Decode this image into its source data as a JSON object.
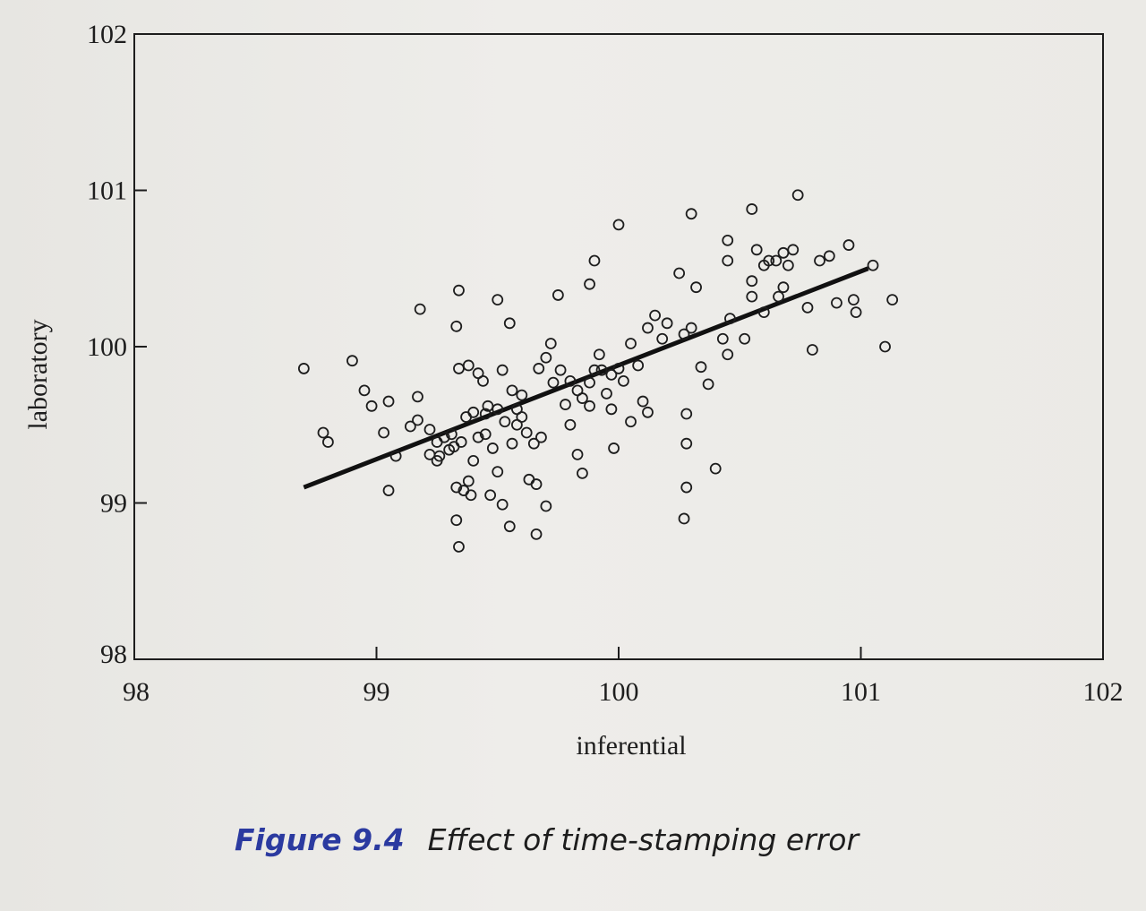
{
  "caption": {
    "number": "Figure 9.4",
    "text": "Effect of time-stamping error"
  },
  "colors": {
    "figure_number": "#2b3aa0",
    "ink": "#1d1d1d"
  },
  "chart_data": {
    "type": "scatter",
    "title": "",
    "xlabel": "inferential",
    "ylabel": "laboratory",
    "xlim": [
      98,
      102
    ],
    "ylim": [
      98,
      102
    ],
    "x_ticks": [
      "98",
      "99",
      "100",
      "101",
      "102"
    ],
    "y_ticks": [
      "98",
      "99",
      "100",
      "101",
      "102"
    ],
    "grid": false,
    "fit_line": {
      "x": [
        98.7,
        101.03
      ],
      "y": [
        99.1,
        100.5
      ]
    },
    "points": [
      [
        98.7,
        99.86
      ],
      [
        98.78,
        99.45
      ],
      [
        98.8,
        99.39
      ],
      [
        98.9,
        99.91
      ],
      [
        98.95,
        99.72
      ],
      [
        98.98,
        99.62
      ],
      [
        99.03,
        99.45
      ],
      [
        99.05,
        99.65
      ],
      [
        99.08,
        99.3
      ],
      [
        99.05,
        99.08
      ],
      [
        99.17,
        99.68
      ],
      [
        99.17,
        99.53
      ],
      [
        99.14,
        99.49
      ],
      [
        99.18,
        100.24
      ],
      [
        99.22,
        99.47
      ],
      [
        99.22,
        99.31
      ],
      [
        99.25,
        99.39
      ],
      [
        99.25,
        99.27
      ],
      [
        99.3,
        99.34
      ],
      [
        99.31,
        99.44
      ],
      [
        99.35,
        99.39
      ],
      [
        99.38,
        99.14
      ],
      [
        99.37,
        99.55
      ],
      [
        99.4,
        99.27
      ],
      [
        99.33,
        99.1
      ],
      [
        99.36,
        99.08
      ],
      [
        99.39,
        99.05
      ],
      [
        99.33,
        98.89
      ],
      [
        99.34,
        98.72
      ],
      [
        99.34,
        100.36
      ],
      [
        99.33,
        100.13
      ],
      [
        99.34,
        99.86
      ],
      [
        99.38,
        99.88
      ],
      [
        99.42,
        99.83
      ],
      [
        99.44,
        99.78
      ],
      [
        99.46,
        99.62
      ],
      [
        99.45,
        99.44
      ],
      [
        99.48,
        99.35
      ],
      [
        99.5,
        99.2
      ],
      [
        99.47,
        99.05
      ],
      [
        99.52,
        98.99
      ],
      [
        99.55,
        98.85
      ],
      [
        99.5,
        100.3
      ],
      [
        99.55,
        100.15
      ],
      [
        99.52,
        99.85
      ],
      [
        99.56,
        99.72
      ],
      [
        99.58,
        99.6
      ],
      [
        99.6,
        99.55
      ],
      [
        99.62,
        99.45
      ],
      [
        99.65,
        99.38
      ],
      [
        99.63,
        99.15
      ],
      [
        99.66,
        99.12
      ],
      [
        99.66,
        98.8
      ],
      [
        99.7,
        98.98
      ],
      [
        99.67,
        99.86
      ],
      [
        99.7,
        99.93
      ],
      [
        99.72,
        100.02
      ],
      [
        99.75,
        100.33
      ],
      [
        99.78,
        99.63
      ],
      [
        99.8,
        99.5
      ],
      [
        99.83,
        99.31
      ],
      [
        99.85,
        99.19
      ],
      [
        99.88,
        99.62
      ],
      [
        99.9,
        99.85
      ],
      [
        99.92,
        99.95
      ],
      [
        99.88,
        100.4
      ],
      [
        99.9,
        100.55
      ],
      [
        99.95,
        99.7
      ],
      [
        99.97,
        99.6
      ],
      [
        99.98,
        99.35
      ],
      [
        100.0,
        99.86
      ],
      [
        100.02,
        99.78
      ],
      [
        100.0,
        100.78
      ],
      [
        100.05,
        99.52
      ],
      [
        100.05,
        100.02
      ],
      [
        100.08,
        99.88
      ],
      [
        100.1,
        99.65
      ],
      [
        100.12,
        99.58
      ],
      [
        100.12,
        100.12
      ],
      [
        100.15,
        100.2
      ],
      [
        100.18,
        100.05
      ],
      [
        100.2,
        100.15
      ],
      [
        100.25,
        100.47
      ],
      [
        100.27,
        100.08
      ],
      [
        100.3,
        100.12
      ],
      [
        100.28,
        99.57
      ],
      [
        100.28,
        99.38
      ],
      [
        100.28,
        99.1
      ],
      [
        100.27,
        98.9
      ],
      [
        100.3,
        100.85
      ],
      [
        100.32,
        100.38
      ],
      [
        100.34,
        99.87
      ],
      [
        100.37,
        99.76
      ],
      [
        100.4,
        99.22
      ],
      [
        100.43,
        100.05
      ],
      [
        100.46,
        100.18
      ],
      [
        100.45,
        99.95
      ],
      [
        100.45,
        100.55
      ],
      [
        100.45,
        100.68
      ],
      [
        100.52,
        100.05
      ],
      [
        100.55,
        100.32
      ],
      [
        100.55,
        100.88
      ],
      [
        100.57,
        100.62
      ],
      [
        100.6,
        100.52
      ],
      [
        100.62,
        100.55
      ],
      [
        100.65,
        100.55
      ],
      [
        100.66,
        100.32
      ],
      [
        100.68,
        100.38
      ],
      [
        100.68,
        100.6
      ],
      [
        100.7,
        100.52
      ],
      [
        100.72,
        100.62
      ],
      [
        100.74,
        100.97
      ],
      [
        100.78,
        100.25
      ],
      [
        100.8,
        99.98
      ],
      [
        100.83,
        100.55
      ],
      [
        100.87,
        100.58
      ],
      [
        100.9,
        100.28
      ],
      [
        100.95,
        100.65
      ],
      [
        100.97,
        100.3
      ],
      [
        100.98,
        100.22
      ],
      [
        101.05,
        100.52
      ],
      [
        101.1,
        100.0
      ],
      [
        101.13,
        100.3
      ],
      [
        100.6,
        100.22
      ],
      [
        100.55,
        100.42
      ],
      [
        99.28,
        99.42
      ],
      [
        99.42,
        99.42
      ],
      [
        99.58,
        99.5
      ],
      [
        99.6,
        99.69
      ],
      [
        99.68,
        99.42
      ],
      [
        99.73,
        99.77
      ],
      [
        99.76,
        99.85
      ],
      [
        99.8,
        99.78
      ],
      [
        99.83,
        99.72
      ],
      [
        99.85,
        99.67
      ],
      [
        99.88,
        99.77
      ],
      [
        99.93,
        99.85
      ],
      [
        99.97,
        99.82
      ],
      [
        99.5,
        99.6
      ],
      [
        99.45,
        99.57
      ],
      [
        99.4,
        99.58
      ],
      [
        99.53,
        99.52
      ],
      [
        99.56,
        99.38
      ],
      [
        99.26,
        99.3
      ],
      [
        99.32,
        99.36
      ]
    ]
  }
}
